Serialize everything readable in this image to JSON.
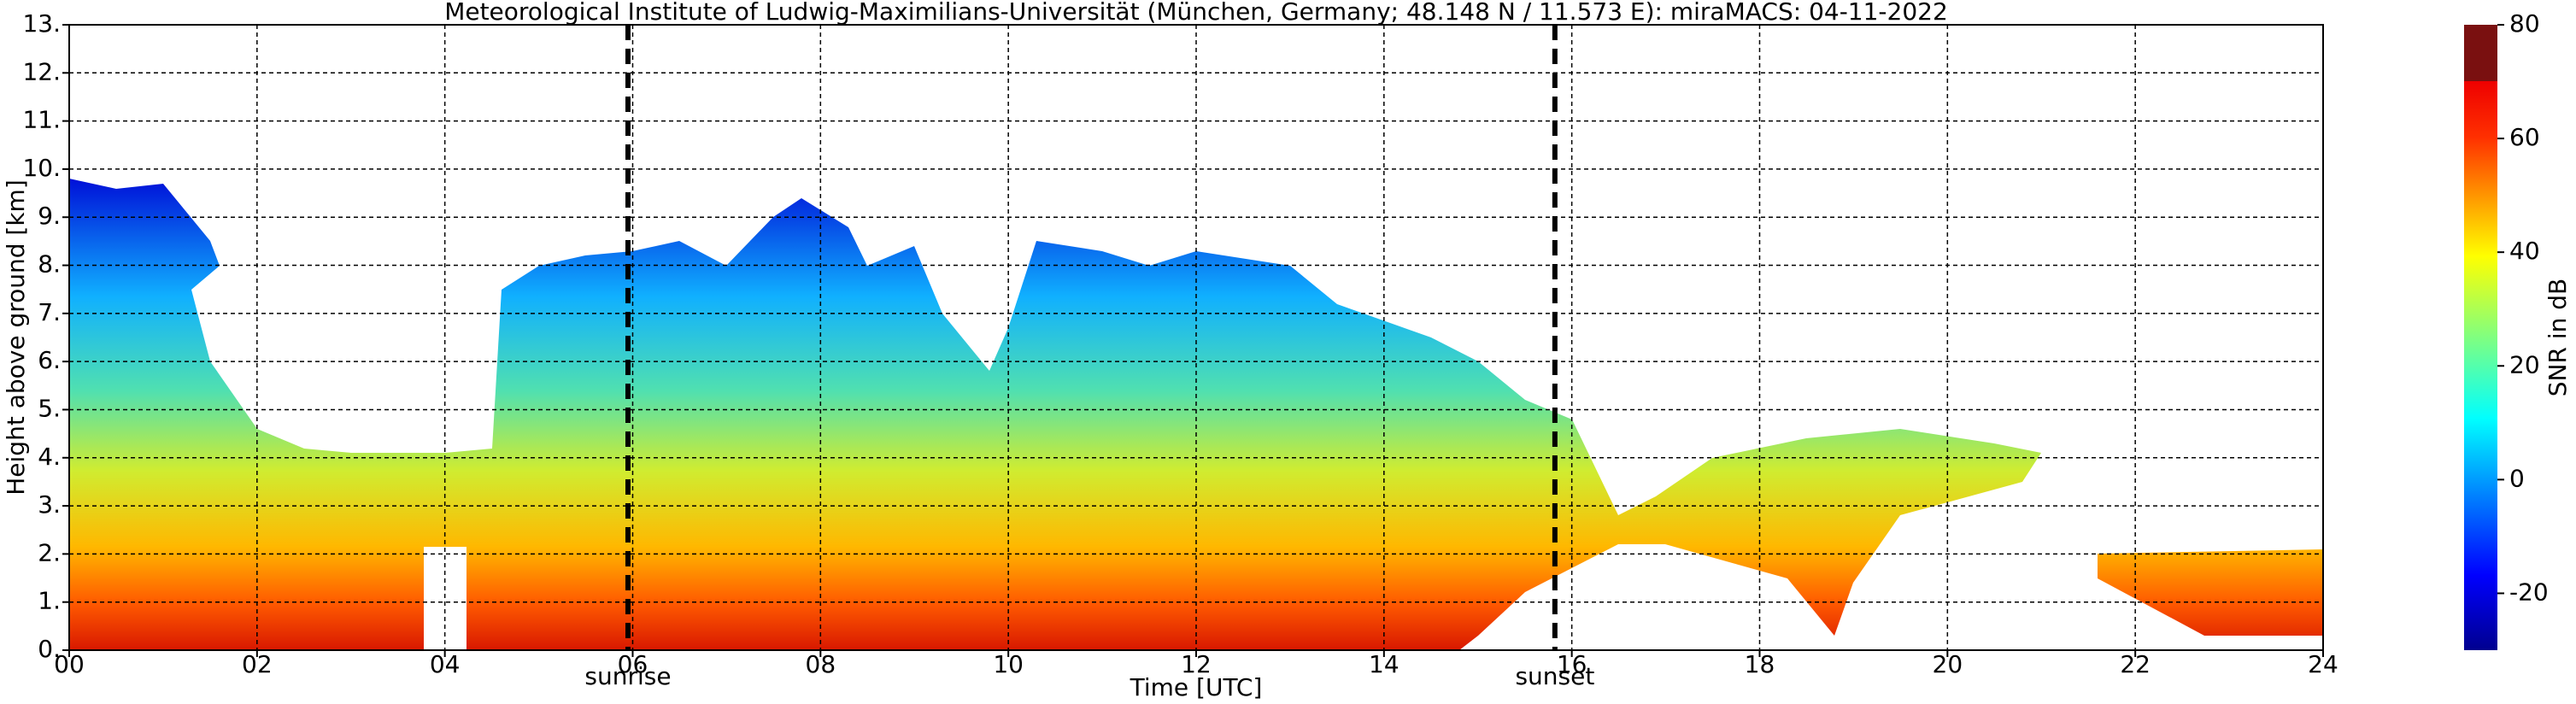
{
  "chart_data": {
    "type": "heatmap",
    "title": "Meteorological Institute of Ludwig-Maximilians-Universität (München, Germany; 48.148 N / 11.573 E):    miraMACS: 04-11-2022",
    "x_label": "Time [UTC]",
    "y_label": "Height above ground [km]",
    "xlim": [
      0,
      24
    ],
    "xticks": [
      {
        "value": 0,
        "label": "00"
      },
      {
        "value": 2,
        "label": "02"
      },
      {
        "value": 4,
        "label": "04"
      },
      {
        "value": 6,
        "label": "06"
      },
      {
        "value": 8,
        "label": "08"
      },
      {
        "value": 10,
        "label": "10"
      },
      {
        "value": 12,
        "label": "12"
      },
      {
        "value": 14,
        "label": "14"
      },
      {
        "value": 16,
        "label": "16"
      },
      {
        "value": 18,
        "label": "18"
      },
      {
        "value": 20,
        "label": "20"
      },
      {
        "value": 22,
        "label": "22"
      },
      {
        "value": 24,
        "label": "24"
      }
    ],
    "ylim": [
      0,
      13
    ],
    "yticks": [
      {
        "value": 0,
        "label": "0."
      },
      {
        "value": 1,
        "label": "1."
      },
      {
        "value": 2,
        "label": "2."
      },
      {
        "value": 3,
        "label": "3."
      },
      {
        "value": 4,
        "label": "4."
      },
      {
        "value": 5,
        "label": "5."
      },
      {
        "value": 6,
        "label": "6."
      },
      {
        "value": 7,
        "label": "7."
      },
      {
        "value": 8,
        "label": "8."
      },
      {
        "value": 9,
        "label": "9."
      },
      {
        "value": 10,
        "label": "10."
      },
      {
        "value": 11,
        "label": "11."
      },
      {
        "value": 12,
        "label": "12."
      },
      {
        "value": 13,
        "label": "13."
      }
    ],
    "grid": true,
    "annotations": [
      {
        "label": "sunrise",
        "x": 5.95
      },
      {
        "label": "sunset",
        "x": 15.82
      }
    ],
    "colorbar": {
      "label": "SNR in dB",
      "lim": [
        -30,
        80
      ],
      "ticks": [
        -20,
        0,
        20,
        40,
        60,
        80
      ]
    }
  }
}
